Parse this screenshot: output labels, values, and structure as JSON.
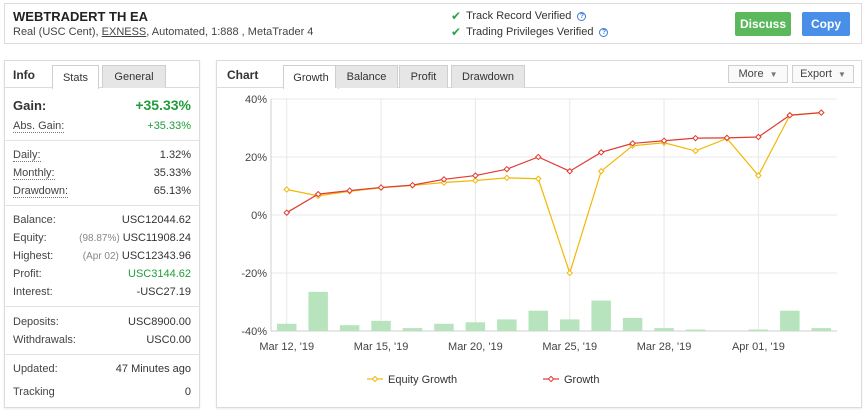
{
  "header": {
    "title": "WEBTRADERT TH EA",
    "subtitle_prefix": "Real (USC Cent), ",
    "broker": "EXNESS",
    "subtitle_suffix": ", Automated, 1:888 , MetaTrader 4",
    "track_record": "Track Record Verified",
    "trading_privileges": "Trading Privileges Verified",
    "discuss_label": "Discuss",
    "copy_label": "Copy",
    "colors": {
      "discuss": "#5cb85c",
      "copy": "#4a8fe7",
      "check": "#2aa24b"
    }
  },
  "info": {
    "title": "Info",
    "tabs": [
      "Stats",
      "General"
    ],
    "gain_label": "Gain:",
    "gain": "+35.33%",
    "abs_gain_label": "Abs. Gain:",
    "abs_gain": "+35.33%",
    "daily_label": "Daily:",
    "daily": "1.32%",
    "monthly_label": "Monthly:",
    "monthly": "35.33%",
    "drawdown_label": "Drawdown:",
    "drawdown": "65.13%",
    "balance_label": "Balance:",
    "balance": "USC12044.62",
    "equity_label": "Equity:",
    "equity_pct": "(98.87%)",
    "equity": "USC11908.24",
    "highest_label": "Highest:",
    "highest_date": "(Apr 02)",
    "highest": "USC12343.96",
    "profit_label": "Profit:",
    "profit": "USC3144.62",
    "interest_label": "Interest:",
    "interest": "-USC27.19",
    "deposits_label": "Deposits:",
    "deposits": "USC8900.00",
    "withdrawals_label": "Withdrawals:",
    "withdrawals": "USC0.00",
    "updated_label": "Updated:",
    "updated": "47 Minutes ago",
    "tracking_label": "Tracking",
    "tracking": "0"
  },
  "chart_panel": {
    "title": "Chart",
    "tabs": [
      "Growth",
      "Balance",
      "Profit",
      "Drawdown"
    ],
    "active_tab": "Growth",
    "more_label": "More",
    "export_label": "Export"
  },
  "chart_data": {
    "type": "line",
    "y_ticks": [
      "40%",
      "20%",
      "0%",
      "-20%",
      "-40%"
    ],
    "ylim": [
      -40,
      40
    ],
    "x_tick_labels": [
      "Mar 12, '19",
      "Mar 15, '19",
      "Mar 20, '19",
      "Mar 25, '19",
      "Mar 28, '19",
      "Apr 01, '19"
    ],
    "x_tick_index": [
      0,
      3,
      6,
      9,
      12,
      15
    ],
    "grid": true,
    "legend_position": "bottom",
    "series": [
      {
        "name": "Equity Growth",
        "color": "#f2b705",
        "values": [
          8.8,
          6.6,
          8.2,
          9.4,
          10.2,
          11.2,
          11.9,
          12.8,
          12.5,
          -20.0,
          15.1,
          23.9,
          24.9,
          22.1,
          26.4,
          13.6,
          34.4,
          35.3
        ]
      },
      {
        "name": "Growth",
        "color": "#e03a32",
        "values": [
          0.8,
          7.2,
          8.4,
          9.5,
          10.3,
          12.3,
          13.6,
          15.8,
          20.0,
          15.1,
          21.6,
          24.7,
          25.6,
          26.5,
          26.6,
          26.9,
          34.4,
          35.3
        ]
      }
    ],
    "bars": {
      "color": "#b7e4bd",
      "values": [
        2.5,
        13.5,
        2.0,
        3.5,
        1.0,
        2.5,
        3.0,
        4.0,
        7.0,
        4.0,
        10.5,
        4.5,
        1.0,
        0.5,
        0,
        0.5,
        7.0,
        1.0
      ]
    }
  }
}
